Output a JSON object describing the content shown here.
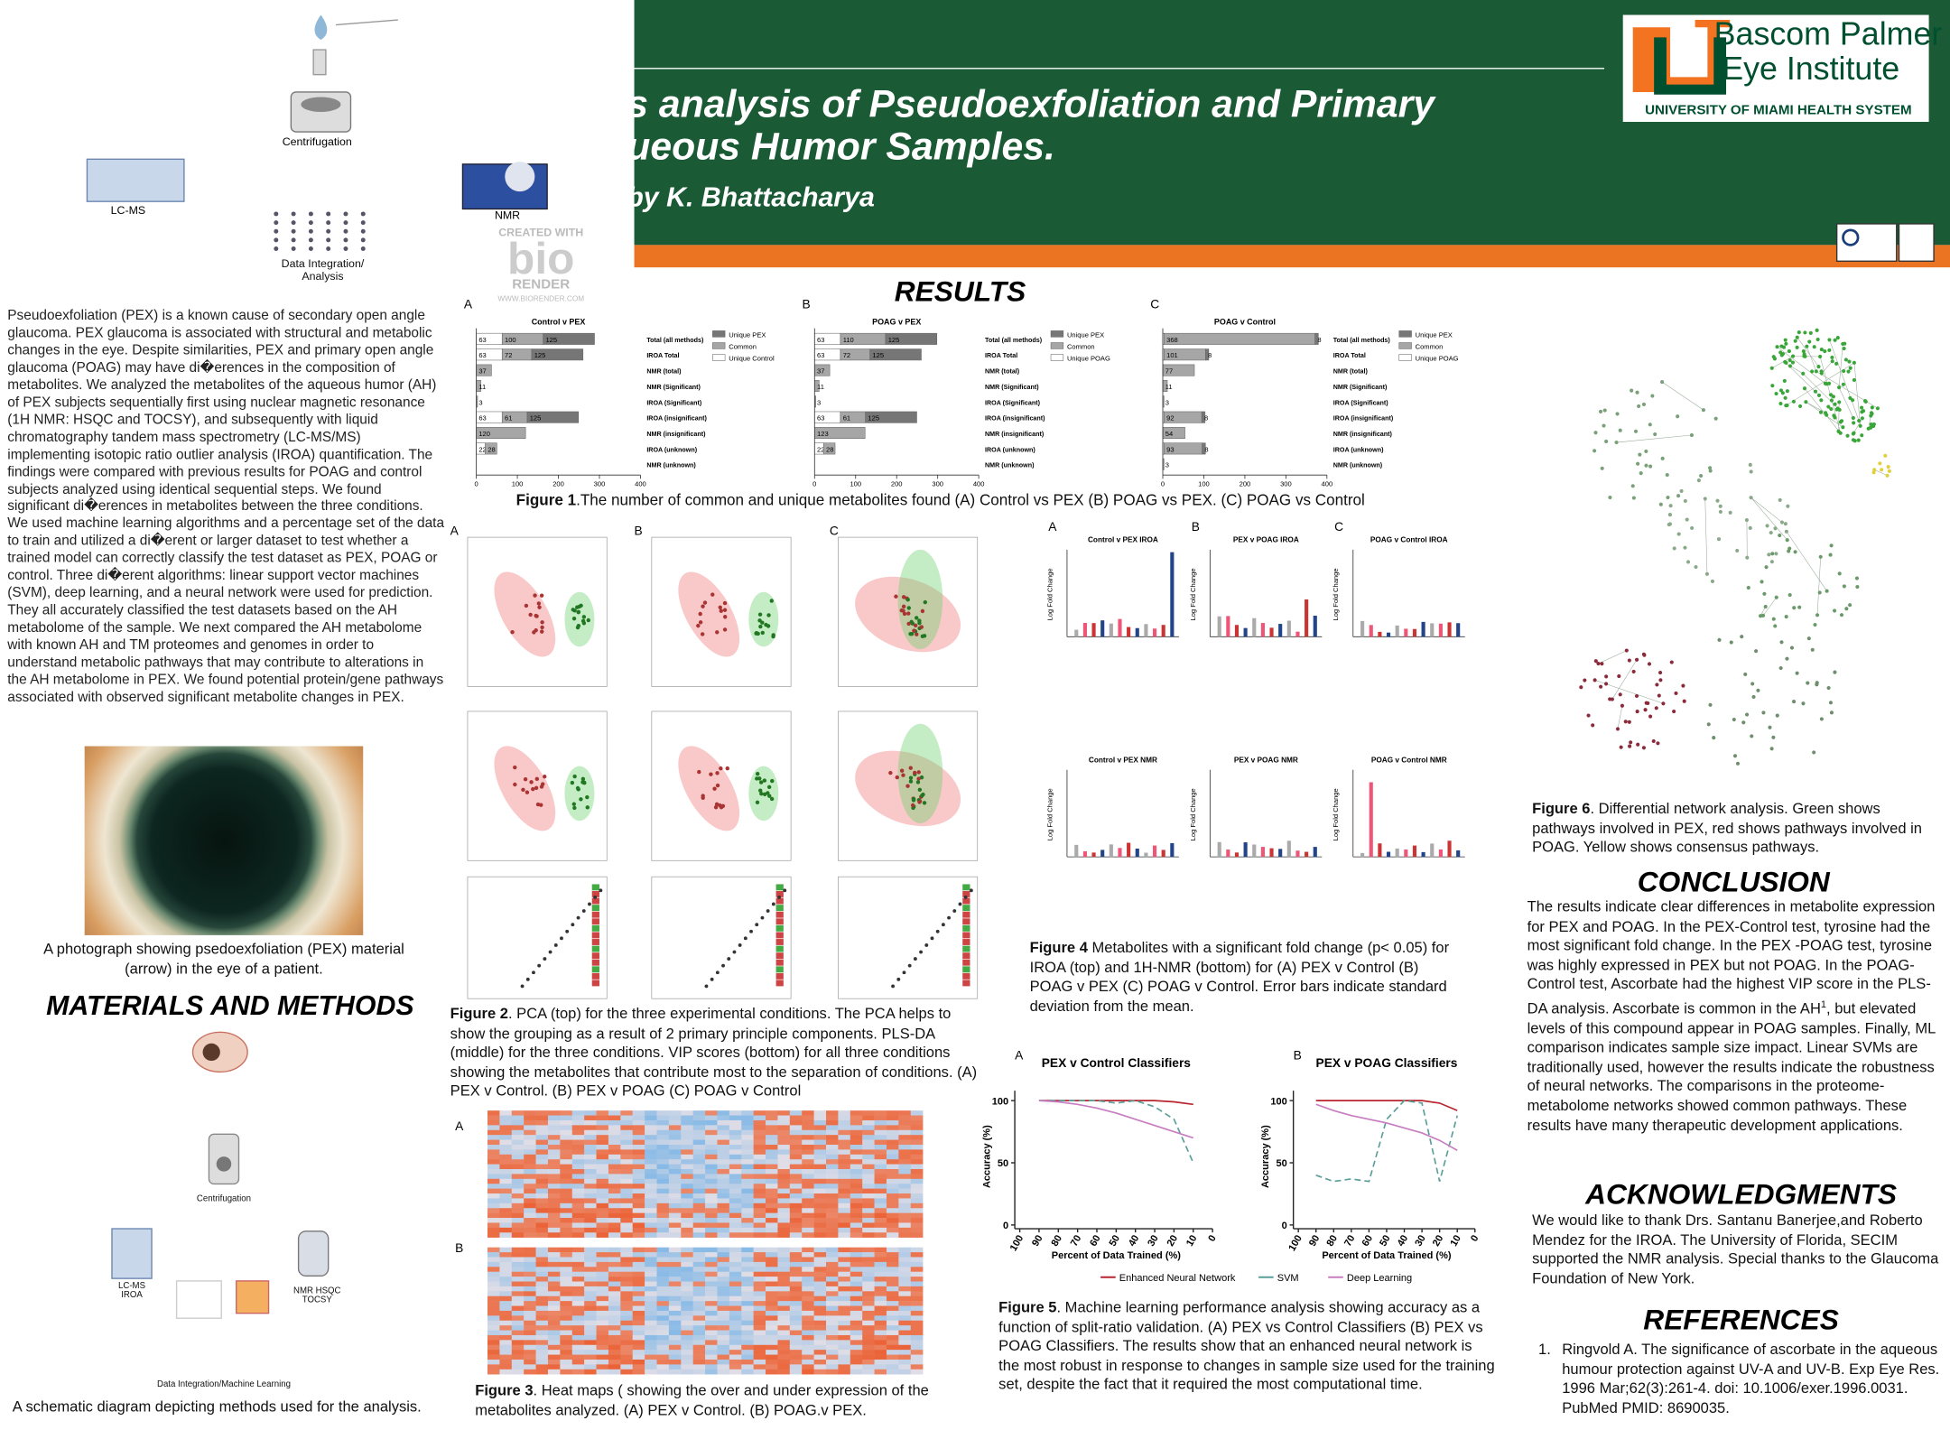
{
  "header": {
    "title_line1": "s analysis of Pseudoexfoliation and Primary",
    "title_line2": "ueous Humor Samples.",
    "author": "by K. Bhattacharya",
    "logo": {
      "name_line1": "Bascom Palmer",
      "name_line2": "Eye Institute",
      "system": "UNIVERSITY OF MIAMI HEALTH SYSTEM"
    }
  },
  "left": {
    "top_diagram": {
      "centrifugation": "Centrifugation",
      "lcms": "LC-MS",
      "nmr": "NMR",
      "integration": "Data Integration/ Analysis",
      "watermark": {
        "created": "CREATED WITH",
        "bio": "bio",
        "render": "RENDER",
        "url": "WWW.BIORENDER.COM"
      }
    },
    "intro": "Pseudoexfoliation (PEX) is a known cause of secondary open angle glaucoma. PEX glaucoma is associated with structural and metabolic changes in the eye. Despite similarities, PEX and primary open angle glaucoma (POAG) may have di�erences in the composition of metabolites. We analyzed the metabolites of the aqueous humor (AH) of PEX subjects sequentially first using nuclear magnetic resonance (1H NMR: HSQC and TOCSY), and subsequently with liquid chromatography tandem mass spectrometry (LC-MS/MS) implementing isotopic ratio outlier analysis (IROA) quantification. The findings were compared with previous results for POAG and control subjects analyzed using identical sequential steps. We found significant di�erences in metabolites between the three conditions. We used machine learning algorithms and a percentage set of the data to train and utilized a di�erent or larger dataset to test whether a trained model can correctly classify the test dataset as PEX, POAG or control. Three di�erent algorithms: linear support vector machines (SVM), deep learning, and a neural network were used for prediction. They all accurately classified the test datasets based on the AH metabolome of the sample. We next compared the AH metabolome with known AH and TM proteomes and genomes in order to understand metabolic pathways that may contribute to alterations in the AH metabolome in PEX. We found potential protein/gene pathways associated with observed significant metabolite changes in PEX.",
    "photo_caption": "A photograph showing psedoexfoliation (PEX) material (arrow) in the eye of a patient.",
    "methods_heading": "MATERIALS AND METHODS",
    "methods_diagram": {
      "centrifugation": "Centrifugation",
      "lcms": "LC-MS IROA",
      "nmr": "NMR HSQC TOCSY",
      "integration": "Data Integration/Machine Learning"
    },
    "methods_caption": "A schematic diagram depicting methods used for the analysis."
  },
  "results": {
    "heading": "RESULTS",
    "figure1": {
      "label": "Figure 1",
      "text": ".The number of common and unique metabolites found (A) Control vs PEX (B) POAG vs PEX. (C) POAG vs Control",
      "row_labels": [
        "Total (all methods)",
        "IROA Total",
        "NMR (total)",
        "NMR (Significant)",
        "IROA (Significant)",
        "IROA (insignificant)",
        "NMR (insignificant)",
        "IROA (unknown)",
        "NMR (unknown)"
      ],
      "xlim": [
        0,
        400
      ],
      "xticks": [
        0,
        100,
        200,
        300,
        400
      ],
      "segment_colors": [
        "#ffffff",
        "#a6a6a6",
        "#767676"
      ],
      "panels": [
        {
          "letter": "A",
          "title": "Control v PEX",
          "legend": [
            {
              "name": "Unique PEX",
              "color": "#767676"
            },
            {
              "name": "Common",
              "color": "#a6a6a6"
            },
            {
              "name": "Unique Control",
              "color": "#ffffff"
            }
          ],
          "rows": [
            [
              63,
              100,
              125
            ],
            [
              63,
              72,
              125
            ],
            [
              37
            ],
            [
              11
            ],
            [
              3
            ],
            [
              63,
              61,
              125
            ],
            [
              120
            ],
            [
              22,
              28
            ],
            []
          ]
        },
        {
          "letter": "B",
          "title": "POAG v PEX",
          "legend": [
            {
              "name": "Unique PEX",
              "color": "#767676"
            },
            {
              "name": "Common",
              "color": "#a6a6a6"
            },
            {
              "name": "Unique POAG",
              "color": "#ffffff"
            }
          ],
          "rows": [
            [
              63,
              110,
              125
            ],
            [
              63,
              72,
              125
            ],
            [
              37
            ],
            [
              11
            ],
            [
              3
            ],
            [
              63,
              61,
              125
            ],
            [
              123
            ],
            [
              22,
              28
            ],
            []
          ]
        },
        {
          "letter": "C",
          "title": "POAG v Control",
          "legend": [
            {
              "name": "Unique PEX",
              "color": "#767676"
            },
            {
              "name": "Common",
              "color": "#a6a6a6"
            },
            {
              "name": "Unique POAG",
              "color": "#ffffff"
            }
          ],
          "rows": [
            [
              3,
              368,
              8
            ],
            [
              3,
              101,
              8
            ],
            [
              77
            ],
            [
              11
            ],
            [
              3
            ],
            [
              3,
              92,
              8
            ],
            [
              54
            ],
            [
              3,
              93,
              8
            ],
            [
              3
            ]
          ]
        }
      ]
    },
    "figure2": {
      "letters": [
        "A",
        "B",
        "C"
      ],
      "label": "Figure 2",
      "text": ". PCA (top) for the three experimental conditions. The PCA helps to show the grouping as a result of 2 primary principle components. PLS-DA (middle) for the three conditions. VIP scores (bottom) for all three conditions showing the metabolites that contribute most to the separation of conditions. (A) PEX v Control. (B) PEX v POAG (C) POAG v Control"
    },
    "figure3": {
      "letters": [
        "A",
        "B"
      ],
      "label": "Figure 3",
      "text": ". Heat maps ( showing the over and under expression of the metabolites analyzed. (A) PEX v Control. (B) POAG.v PEX."
    },
    "figure4": {
      "y_label": "Log Fold Change",
      "panels": [
        {
          "letter": "A",
          "title": "Control v PEX IROA"
        },
        {
          "letter": "B",
          "title": "PEX v POAG IROA"
        },
        {
          "letter": "C",
          "title": "POAG v Control IROA"
        },
        {
          "title": "Control v PEX NMR"
        },
        {
          "title": "PEX v POAG NMR"
        },
        {
          "title": "POAG v Control NMR"
        }
      ],
      "label": "Figure 4",
      "text": " Metabolites with a significant fold change (p< 0.05)  for IROA (top) and 1H-NMR (bottom)  for (A) PEX v Control (B) POAG v PEX (C) POAG v Control. Error bars indicate standard deviation from the mean."
    },
    "figure5": {
      "x_label": "Percent of Data Trained (%)",
      "y_label": "Accuracy (%)",
      "xlim": [
        100,
        0
      ],
      "ylim": [
        0,
        108
      ],
      "xticks": [
        100,
        90,
        80,
        70,
        60,
        50,
        40,
        30,
        20,
        10,
        0
      ],
      "yticks": [
        0,
        50,
        100
      ],
      "x": [
        90,
        80,
        70,
        60,
        50,
        40,
        30,
        20,
        10
      ],
      "panels": [
        {
          "letter": "A",
          "title": "PEX v Control Classifiers",
          "series": [
            {
              "name": "Enhanced Neural Network",
              "color": "#b8252e",
              "dashed": false,
              "values": [
                100,
                100,
                100,
                100,
                100,
                100,
                100,
                99,
                97
              ]
            },
            {
              "name": "SVM",
              "color": "#5a9e9a",
              "dashed": true,
              "values": [
                100,
                100,
                100,
                100,
                98,
                100,
                95,
                85,
                50
              ]
            },
            {
              "name": "Deep Learning",
              "color": "#c77dc0",
              "dashed": false,
              "values": [
                100,
                99,
                97,
                94,
                90,
                85,
                80,
                75,
                70
              ]
            }
          ]
        },
        {
          "letter": "B",
          "title": "PEX v POAG Classifiers",
          "series": [
            {
              "name": "Enhanced Neural Network",
              "color": "#b8252e",
              "dashed": false,
              "values": [
                100,
                100,
                100,
                100,
                100,
                100,
                100,
                98,
                92
              ]
            },
            {
              "name": "SVM",
              "color": "#5a9e9a",
              "dashed": true,
              "values": [
                40,
                35,
                37,
                35,
                85,
                100,
                98,
                35,
                88
              ]
            },
            {
              "name": "Deep Learning",
              "color": "#c77dc0",
              "dashed": false,
              "values": [
                97,
                92,
                88,
                85,
                82,
                78,
                74,
                68,
                60
              ]
            }
          ]
        }
      ],
      "label": "Figure 5",
      "text": ". Machine learning performance analysis showing accuracy as a function of split-ratio validation. (A) PEX vs Control Classifiers (B) PEX vs POAG Classifiers. The results show that an enhanced neural network is the most robust in response to changes in sample size used for the training set, despite the fact that it required the most computational time."
    }
  },
  "right": {
    "figure6": {
      "label": "Figure 6",
      "text": ". Differential network analysis. Green shows pathways involved in PEX, red shows pathways involved in POAG. Yellow shows consensus pathways."
    },
    "conclusion": {
      "heading": "CONCLUSION",
      "text_before": "The results indicate clear differences in metabolite expression for PEX and POAG. In the PEX-Control test, tyrosine had the most significant fold change. In the PEX -POAG test, tyrosine was highly expressed in PEX but not POAG. In the POAG-Control test, Ascorbate had the highest VIP score in the PLS-DA analysis. Ascorbate is common in the AH",
      "superscript": "1",
      "text_after": ", but elevated levels of this compound appear in POAG samples. Finally, ML comparison indicates sample size impact. Linear SVMs are traditionally used, however the results indicate the robustness of neural networks. The comparisons in the proteome-metabolome networks showed common pathways. These results have many therapeutic development applications."
    },
    "acknowledgments": {
      "heading": "ACKNOWLEDGMENTS",
      "text": "We would like to thank Drs. Santanu Banerjee,and Roberto Mendez for the IROA. The University of Florida, SECIM supported the NMR analysis. Special thanks to the Glaucoma Foundation of New York."
    },
    "references": {
      "heading": "REFERENCES",
      "items": [
        {
          "number": "1.",
          "text": "Ringvold A. The significance of ascorbate in the aqueous humour protection against UV-A and UV-B. Exp Eye Res. 1996 Mar;62(3):261-4. doi: 10.1006/exer.1996.0031. PubMed PMID: 8690035."
        }
      ]
    }
  }
}
